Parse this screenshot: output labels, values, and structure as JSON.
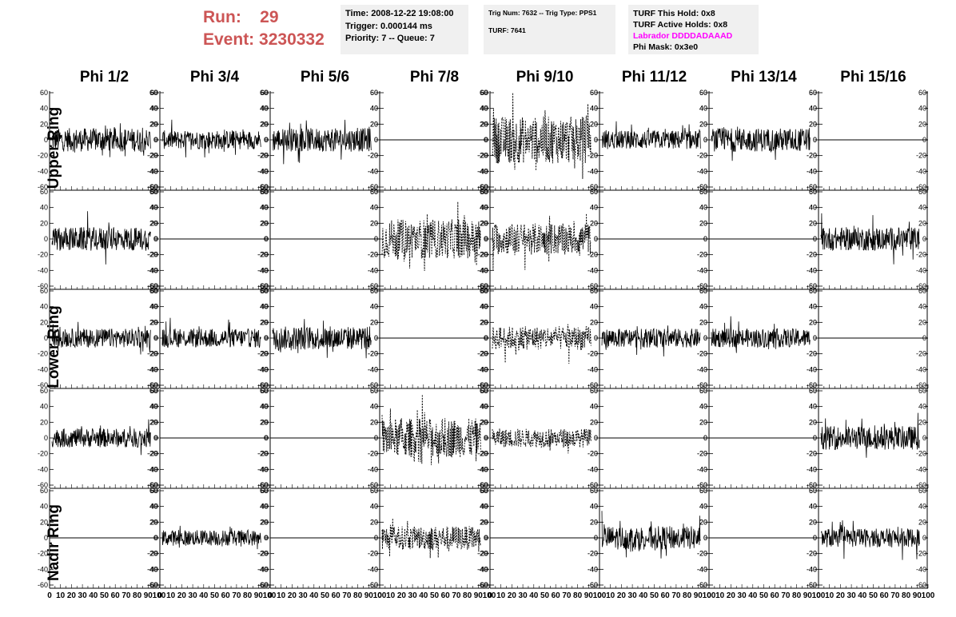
{
  "run": {
    "run_label": "Run:",
    "run_value": "29",
    "event_label": "Event:",
    "event_value": "3230332",
    "color": "#cc5555"
  },
  "time_box": {
    "line1": "Time: 2008-12-22 19:08:00",
    "line2": "Trigger: 0.000144 ms",
    "line3": "Priority: 7 -- Queue: 7"
  },
  "trig_box": {
    "line1": "Trig Num: 7632 -- Trig Type: PPS1",
    "line2": "TURF: 7641"
  },
  "turf_box": {
    "line1": "TURF This Hold: 0x8",
    "line2": "TURF Active Holds: 0x8",
    "line3": "Labrador DDDDADAAAD",
    "line4": "Phi Mask: 0x3e0",
    "labrador_color": "#ff00ff"
  },
  "columns": [
    "Phi 1/2",
    "Phi 3/4",
    "Phi 5/6",
    "Phi 7/8",
    "Phi 9/10",
    "Phi 11/12",
    "Phi 13/14",
    "Phi 15/16"
  ],
  "ring_labels": {
    "upper": "Upper Ring",
    "lower": "Lower Ring",
    "nadir": "Nadir Ring"
  },
  "axes": {
    "y_ticks": [
      "60",
      "40",
      "20",
      "0",
      "-20",
      "-40",
      "-60"
    ],
    "y_values": [
      60,
      40,
      20,
      0,
      -20,
      -40,
      -60
    ],
    "ylim": [
      -60,
      60
    ],
    "xlim": [
      0,
      100
    ],
    "x_ticks": [
      "0",
      "10",
      "20",
      "30",
      "40",
      "50",
      "60",
      "70",
      "80",
      "90",
      "100"
    ],
    "x_values": [
      0,
      10,
      20,
      30,
      40,
      50,
      60,
      70,
      80,
      90,
      100
    ]
  },
  "chart_data": {
    "type": "line",
    "xlim": [
      0,
      100
    ],
    "ylim": [
      -60,
      60
    ],
    "panels": [
      [
        "solid-15",
        "solid-12",
        "solid-15",
        "flat",
        "dotted-30",
        "solid-12",
        "solid-15",
        "flat"
      ],
      [
        "solid-15",
        "flat",
        "flat",
        "dotted-25",
        "dotted-20",
        "flat",
        "flat",
        "solid-15"
      ],
      [
        "solid-12",
        "solid-12",
        "solid-15",
        "flat",
        "dotted-15",
        "solid-12",
        "solid-12",
        "flat"
      ],
      [
        "solid-12",
        "flat",
        "flat",
        "dotted-25",
        "dotted-12",
        "flat",
        "flat",
        "solid-15"
      ],
      [
        "flat",
        "solid-10",
        "flat",
        "dotted-15",
        "flat",
        "solid-15",
        "flat",
        "solid-12"
      ]
    ]
  }
}
